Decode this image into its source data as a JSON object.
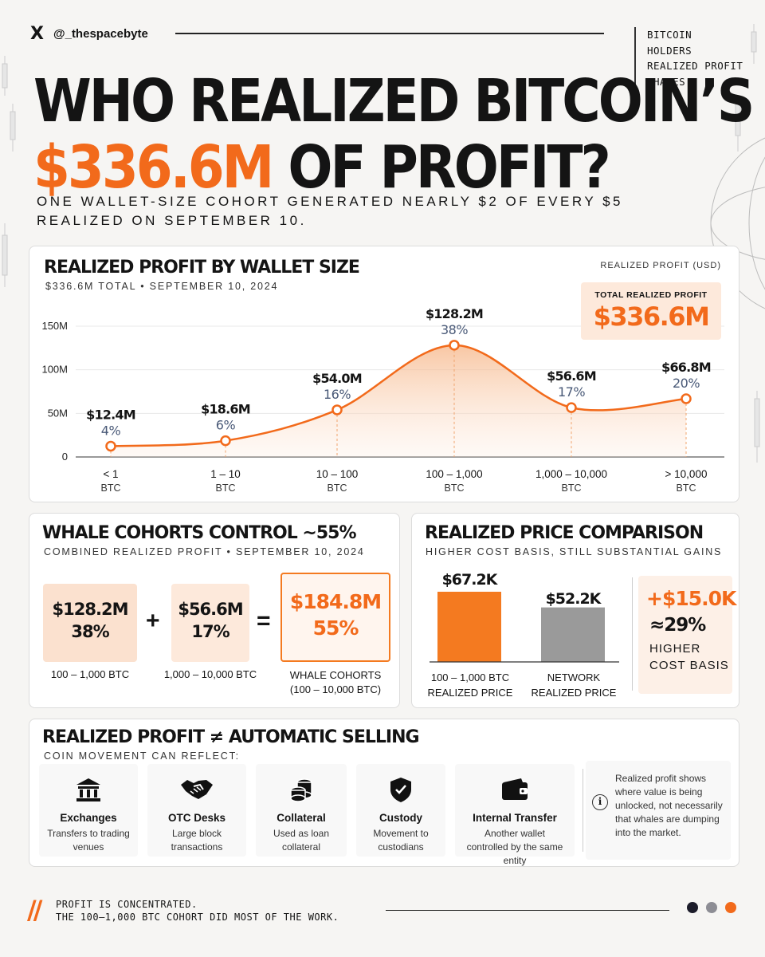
{
  "header": {
    "x_logo": "X",
    "handle": "@_thespacebyte",
    "tags": [
      "BITCOIN",
      "HOLDERS",
      "REALIZED PROFIT",
      "WHALES"
    ],
    "headline_line1": "WHO REALIZED BITCOIN’S",
    "headline_amount": "$336.6M",
    "headline_line2_rest": "OF PROFIT?",
    "subhead": "ONE WALLET-SIZE COHORT GENERATED NEARLY $2 OF EVERY $5 REALIZED ON SEPTEMBER 10."
  },
  "colors": {
    "accent": "#f26a1b",
    "accent_light": "#fde9db",
    "grey_bar": "#9a9a9a",
    "dark": "#141414"
  },
  "chart_data": {
    "type": "area",
    "title": "REALIZED PROFIT BY WALLET SIZE",
    "subtitle": "$336.6M TOTAL • SEPTEMBER 10, 2024",
    "legend": "REALIZED PROFIT (USD)",
    "categories": [
      {
        "line1": "< 1",
        "line2": "BTC"
      },
      {
        "line1": "1 – 10",
        "line2": "BTC"
      },
      {
        "line1": "10 – 100",
        "line2": "BTC"
      },
      {
        "line1": "100 – 1,000",
        "line2": "BTC"
      },
      {
        "line1": "1,000 – 10,000",
        "line2": "BTC"
      },
      {
        "line1": "> 10,000",
        "line2": "BTC"
      }
    ],
    "values": [
      12.4,
      18.6,
      54.0,
      128.2,
      56.6,
      66.8
    ],
    "value_labels": [
      "$12.4M",
      "$18.6M",
      "$54.0M",
      "$128.2M",
      "$56.6M",
      "$66.8M"
    ],
    "pct_labels": [
      "4%",
      "6%",
      "16%",
      "38%",
      "17%",
      "20%"
    ],
    "y_ticks": [
      0,
      50,
      100,
      150
    ],
    "y_tick_labels": [
      "0",
      "50M",
      "100M",
      "150M"
    ],
    "ylim": [
      0,
      150
    ],
    "grid": true,
    "total_label": "TOTAL REALIZED PROFIT",
    "total_value": "$336.6M"
  },
  "whale": {
    "title": "WHALE COHORTS CONTROL ~55%",
    "subtitle": "COMBINED REALIZED PROFIT • SEPTEMBER 10, 2024",
    "a_value": "$128.2M",
    "a_pct": "38%",
    "a_label": "100 – 1,000 BTC",
    "plus": "+",
    "b_value": "$56.6M",
    "b_pct": "17%",
    "b_label": "1,000 – 10,000 BTC",
    "equals": "=",
    "sum_value": "$184.8M",
    "sum_pct": "55%",
    "sum_label1": "WHALE COHORTS",
    "sum_label2": "(100 – 10,000 BTC)"
  },
  "price": {
    "title": "REALIZED PRICE COMPARISON",
    "subtitle": "HIGHER COST BASIS, STILL SUBSTANTIAL GAINS",
    "bars": [
      {
        "value": 67.2,
        "label": "$67.2K",
        "name1": "100 – 1,000 BTC",
        "name2": "REALIZED PRICE",
        "color": "#f47a20"
      },
      {
        "value": 52.2,
        "label": "$52.2K",
        "name1": "NETWORK",
        "name2": "REALIZED PRICE",
        "color": "#9a9a9a"
      }
    ],
    "delta": "+$15.0K",
    "delta_pct": "≈29%",
    "delta_note1": "HIGHER",
    "delta_note2": "COST BASIS"
  },
  "selling": {
    "title": "REALIZED PROFIT ≠ AUTOMATIC SELLING",
    "subtitle": "COIN MOVEMENT CAN REFLECT:",
    "items": [
      {
        "title": "Exchanges",
        "desc1": "Transfers to trading",
        "desc2": "venues",
        "icon": "bank-icon"
      },
      {
        "title": "OTC Desks",
        "desc1": "Large block",
        "desc2": "transactions",
        "icon": "handshake-icon"
      },
      {
        "title": "Collateral",
        "desc1": "Used as loan",
        "desc2": "collateral",
        "icon": "coins-icon"
      },
      {
        "title": "Custody",
        "desc1": "Movement to",
        "desc2": "custodians",
        "icon": "shield-check-icon"
      },
      {
        "title": "Internal Transfer",
        "desc1": "Another wallet",
        "desc2": "controlled by the same entity",
        "icon": "wallet-icon"
      }
    ],
    "info_icon": "i",
    "info": "Realized profit shows where value is being unlocked, not necessarily that whales are dumping into the market."
  },
  "footer": {
    "slash": "//",
    "line1": "PROFIT IS CONCENTRATED.",
    "line2": "THE 100–1,000 BTC COHORT DID MOST OF THE WORK.",
    "dots": [
      "#1c1c2a",
      "#8d8d94",
      "#f26a1b"
    ]
  }
}
